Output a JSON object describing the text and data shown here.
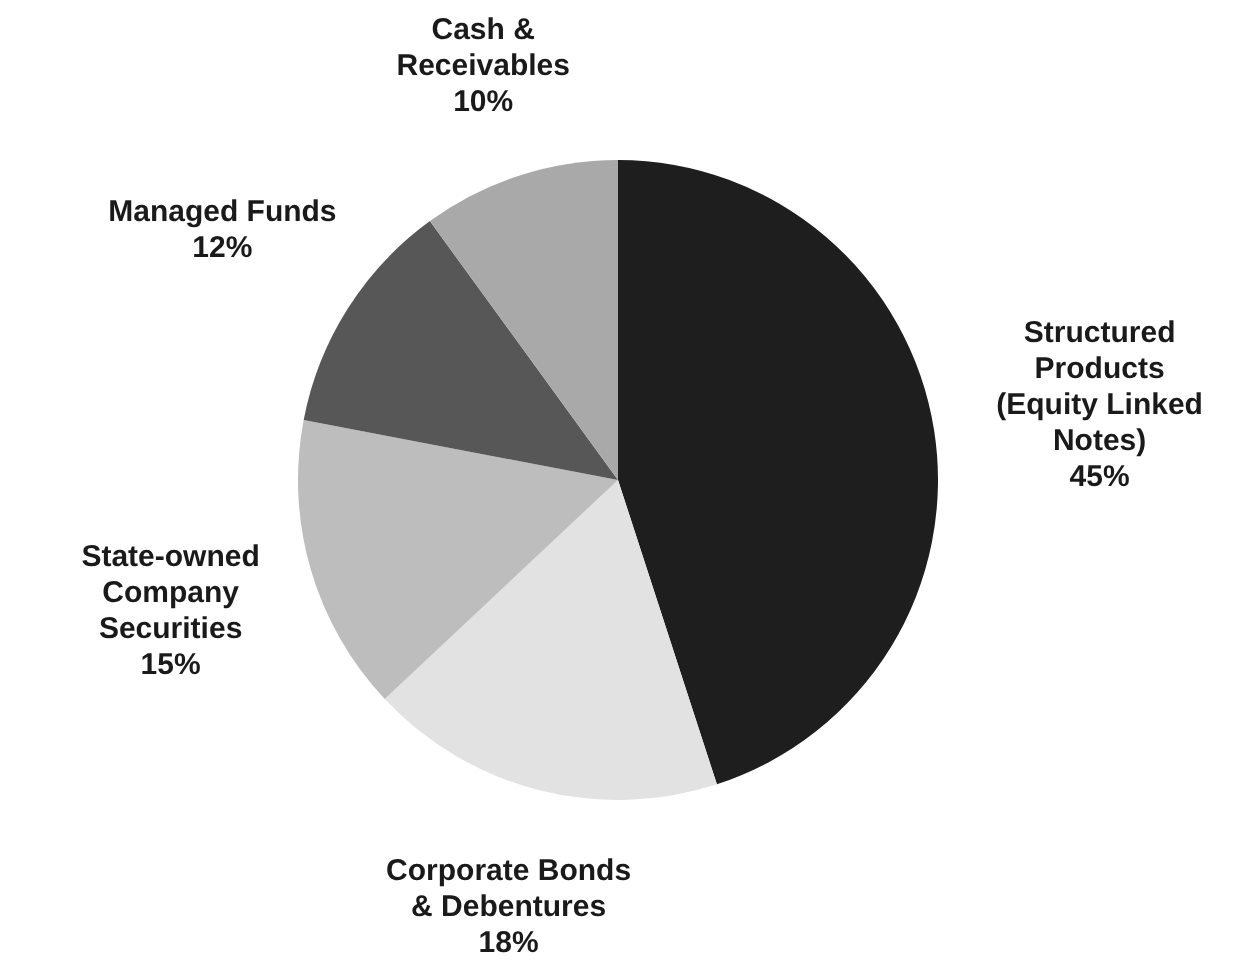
{
  "chart_data": {
    "type": "pie",
    "categories": [
      "Structured Products (Equity Linked Notes)",
      "Corporate Bonds & Debentures",
      "State-owned Company Securities",
      "Managed Funds",
      "Cash & Receivables"
    ],
    "values": [
      45,
      18,
      15,
      12,
      10
    ],
    "value_labels": [
      "45%",
      "18%",
      "15%",
      "12%",
      "10%"
    ],
    "colors": [
      "#1e1e1e",
      "#e2e2e2",
      "#bdbdbd",
      "#575757",
      "#a9a9a9"
    ],
    "legend": false
  }
}
